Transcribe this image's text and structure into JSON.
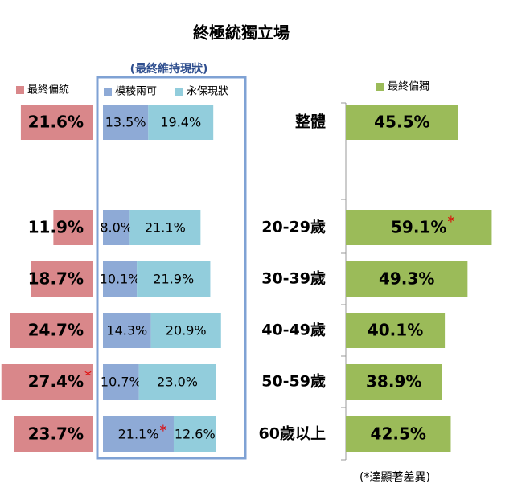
{
  "chart_data": {
    "type": "bar",
    "orientation": "horizontal",
    "title": "終極統獨立場",
    "group_label": "(最終維持現狀)",
    "note": "(*達顯著差異)",
    "flag_mark": "*",
    "categories": [
      "整體",
      "20-29歲",
      "30-39歲",
      "40-49歲",
      "50-59歲",
      "60歲以上"
    ],
    "series": [
      {
        "name": "最終偏統",
        "color": "#d9878a",
        "panel": "left",
        "values": [
          21.6,
          11.9,
          18.7,
          24.7,
          27.4,
          23.7
        ],
        "value_labels": [
          "21.6%",
          "11.9%",
          "18.7%",
          "24.7%",
          "27.4%",
          "23.7%"
        ],
        "flagged": [
          false,
          false,
          false,
          false,
          true,
          false
        ]
      },
      {
        "name": "模稜兩可",
        "color": "#8eaad6",
        "panel": "middle",
        "values": [
          13.5,
          8.0,
          10.1,
          14.3,
          10.7,
          21.1
        ],
        "value_labels": [
          "13.5%",
          "8.0%",
          "10.1%",
          "14.3%",
          "10.7%",
          "21.1%"
        ],
        "flagged": [
          false,
          false,
          false,
          false,
          false,
          true
        ]
      },
      {
        "name": "永保現狀",
        "color": "#92cddc",
        "panel": "middle",
        "values": [
          19.4,
          21.1,
          21.9,
          20.9,
          23.0,
          12.6
        ],
        "value_labels": [
          "19.4%",
          "21.1%",
          "21.9%",
          "20.9%",
          "23.0%",
          "12.6%"
        ],
        "flagged": [
          false,
          false,
          false,
          false,
          false,
          false
        ]
      },
      {
        "name": "最終偏獨",
        "color": "#9bbb59",
        "panel": "right",
        "values": [
          45.5,
          59.1,
          49.3,
          40.1,
          38.9,
          42.5
        ],
        "value_labels": [
          "45.5%",
          "59.1%",
          "49.3%",
          "40.1%",
          "38.9%",
          "42.5%"
        ],
        "flagged": [
          false,
          true,
          false,
          false,
          false,
          false
        ]
      }
    ]
  }
}
